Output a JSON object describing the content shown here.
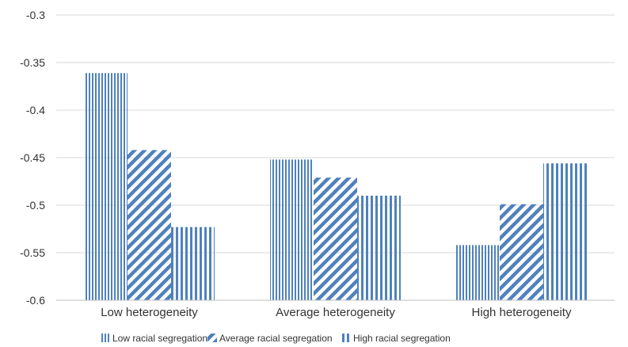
{
  "chart_data": {
    "type": "bar",
    "title": "",
    "xlabel": "",
    "ylabel": "",
    "categories": [
      "Low heterogeneity",
      "Average heterogeneity",
      "High heterogeneity"
    ],
    "series": [
      {
        "name": "Low racial segregation",
        "values": [
          -0.361,
          -0.452,
          -0.542
        ],
        "pattern": "vertical-fine"
      },
      {
        "name": "Average racial segregation",
        "values": [
          -0.442,
          -0.471,
          -0.499
        ],
        "pattern": "diagonal"
      },
      {
        "name": "High racial segregation",
        "values": [
          -0.523,
          -0.49,
          -0.456
        ],
        "pattern": "vertical-coarse"
      }
    ],
    "ylim": [
      -0.6,
      -0.3
    ],
    "yticks": [
      -0.3,
      -0.35,
      -0.4,
      -0.45,
      -0.5,
      -0.55,
      -0.6
    ],
    "ytick_labels": [
      "-0.3",
      "-0.35",
      "-0.4",
      "-0.45",
      "-0.5",
      "-0.55",
      "-0.6"
    ],
    "grid": true,
    "legend_position": "bottom",
    "colors": {
      "bar": "#4f81bd",
      "grid": "#d9d9d9",
      "axis": "#bfbfbf",
      "text": "#333333"
    }
  }
}
